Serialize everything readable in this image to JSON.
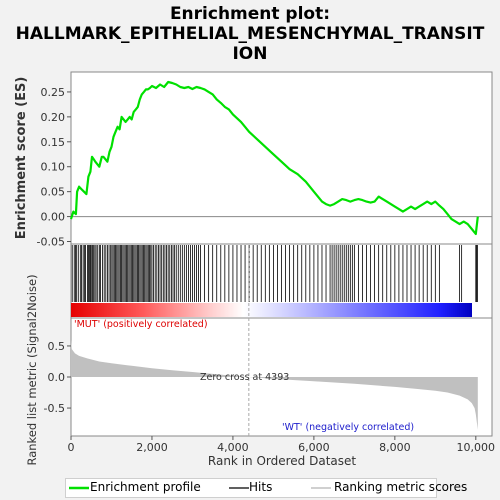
{
  "header": {
    "title_line1": "Enrichment plot:",
    "title_line2": "HALLMARK_EPITHELIAL_MESENCHYMAL_TRANSIT",
    "title_line3": "ION"
  },
  "chart_data": [
    {
      "type": "line",
      "name": "enrichment-score-panel",
      "ylabel": "Enrichment score (ES)",
      "ylim": [
        -0.055,
        0.29
      ],
      "yticks": [
        "-0.05",
        "0.00",
        "0.05",
        "0.10",
        "0.15",
        "0.20",
        "0.25"
      ],
      "xlim": [
        0,
        10400
      ],
      "line_color": "#00e000",
      "series": [
        {
          "name": "Enrichment profile",
          "x": [
            0,
            60,
            120,
            150,
            200,
            260,
            320,
            380,
            430,
            480,
            520,
            560,
            600,
            650,
            700,
            760,
            800,
            850,
            900,
            950,
            1000,
            1050,
            1100,
            1150,
            1200,
            1250,
            1300,
            1350,
            1400,
            1450,
            1500,
            1550,
            1600,
            1650,
            1700,
            1750,
            1800,
            1850,
            1900,
            1950,
            2000,
            2100,
            2200,
            2300,
            2400,
            2500,
            2600,
            2700,
            2800,
            2900,
            3000,
            3100,
            3200,
            3300,
            3400,
            3500,
            3600,
            3700,
            3800,
            3900,
            4000,
            4200,
            4400,
            4600,
            4800,
            5000,
            5200,
            5400,
            5600,
            5800,
            6000,
            6200,
            6300,
            6400,
            6500,
            6600,
            6700,
            6800,
            6900,
            7000,
            7100,
            7200,
            7300,
            7400,
            7500,
            7600,
            7700,
            7800,
            7900,
            8000,
            8100,
            8200,
            8300,
            8400,
            8500,
            8600,
            8700,
            8800,
            8900,
            9000,
            9100,
            9200,
            9300,
            9400,
            9500,
            9600,
            9700,
            9800,
            9900,
            10000,
            10050
          ],
          "y": [
            -0.005,
            0.01,
            0.005,
            0.05,
            0.06,
            0.055,
            0.05,
            0.045,
            0.08,
            0.09,
            0.12,
            0.115,
            0.11,
            0.105,
            0.1,
            0.12,
            0.12,
            0.115,
            0.11,
            0.13,
            0.14,
            0.16,
            0.17,
            0.18,
            0.175,
            0.2,
            0.195,
            0.19,
            0.195,
            0.2,
            0.195,
            0.21,
            0.215,
            0.22,
            0.235,
            0.245,
            0.25,
            0.255,
            0.255,
            0.258,
            0.262,
            0.258,
            0.265,
            0.26,
            0.27,
            0.268,
            0.265,
            0.26,
            0.258,
            0.26,
            0.256,
            0.26,
            0.258,
            0.255,
            0.25,
            0.245,
            0.235,
            0.228,
            0.22,
            0.215,
            0.205,
            0.19,
            0.17,
            0.155,
            0.14,
            0.125,
            0.11,
            0.095,
            0.085,
            0.07,
            0.05,
            0.03,
            0.025,
            0.022,
            0.025,
            0.03,
            0.035,
            0.033,
            0.03,
            0.033,
            0.035,
            0.033,
            0.03,
            0.028,
            0.03,
            0.04,
            0.035,
            0.03,
            0.025,
            0.02,
            0.015,
            0.01,
            0.015,
            0.02,
            0.015,
            0.02,
            0.025,
            0.03,
            0.025,
            0.03,
            0.022,
            0.015,
            0.005,
            -0.005,
            -0.01,
            -0.015,
            -0.01,
            -0.015,
            -0.025,
            -0.035,
            0.0
          ]
        }
      ]
    },
    {
      "type": "line",
      "name": "hits-panel",
      "series": [
        {
          "name": "Hits",
          "x": [
            30,
            80,
            110,
            140,
            180,
            230,
            260,
            300,
            330,
            360,
            410,
            430,
            460,
            480,
            500,
            530,
            560,
            590,
            620,
            660,
            700,
            730,
            780,
            820,
            860,
            900,
            940,
            980,
            1010,
            1040,
            1070,
            1100,
            1130,
            1160,
            1190,
            1220,
            1250,
            1280,
            1310,
            1340,
            1370,
            1400,
            1430,
            1460,
            1490,
            1520,
            1550,
            1580,
            1610,
            1640,
            1670,
            1700,
            1730,
            1760,
            1790,
            1820,
            1850,
            1880,
            1910,
            1940,
            1970,
            2000,
            2040,
            2080,
            2120,
            2160,
            2200,
            2240,
            2280,
            2320,
            2360,
            2400,
            2440,
            2480,
            2520,
            2560,
            2600,
            2650,
            2700,
            2750,
            2800,
            2850,
            2900,
            2950,
            3000,
            3050,
            3100,
            3150,
            3200,
            3300,
            3400,
            3500,
            3600,
            3700,
            3800,
            3900,
            4000,
            4100,
            4200,
            4300,
            4400,
            4500,
            4600,
            4700,
            4800,
            4900,
            5000,
            5100,
            5200,
            5300,
            5400,
            5500,
            5600,
            5700,
            5800,
            5900,
            6000,
            6100,
            6200,
            6300,
            6400,
            6450,
            6500,
            6550,
            6600,
            6650,
            6700,
            6750,
            6800,
            6850,
            6900,
            6950,
            7000,
            7100,
            7200,
            7300,
            7400,
            7500,
            7600,
            7700,
            7800,
            7900,
            8000,
            8100,
            8200,
            8300,
            8400,
            8500,
            8600,
            8700,
            8800,
            8900,
            9000,
            9100,
            9600,
            9650,
            10000,
            10020,
            10040
          ]
        }
      ]
    },
    {
      "type": "area",
      "name": "ranked-metric-panel",
      "ylabel": "Ranked list metric (Signal2Noise)",
      "xlabel": "Rank in Ordered Dataset",
      "ylim": [
        -0.95,
        0.95
      ],
      "yticks": [
        "-0.5",
        "0.0",
        "0.5"
      ],
      "xlim": [
        0,
        10400
      ],
      "xticks": [
        "0",
        "2,000",
        "4,000",
        "6,000",
        "8,000",
        "10,000"
      ],
      "fill_color": "#c0c0c0",
      "zero_cross": 4393,
      "zero_cross_label": "Zero cross at 4393",
      "pos_label": "'MUT' (positively correlated)",
      "neg_label": "'WT' (negatively correlated)",
      "series": [
        {
          "name": "Ranking metric scores",
          "x": [
            0,
            20,
            100,
            200,
            400,
            700,
            1000,
            1500,
            2000,
            2500,
            3000,
            3500,
            4000,
            4393,
            5000,
            6000,
            7000,
            8000,
            8500,
            9000,
            9300,
            9600,
            9800,
            9900,
            9970,
            10000,
            10030,
            10050
          ],
          "y": [
            0.6,
            0.45,
            0.38,
            0.34,
            0.3,
            0.25,
            0.22,
            0.18,
            0.14,
            0.11,
            0.08,
            0.05,
            0.02,
            0.0,
            -0.03,
            -0.07,
            -0.11,
            -0.16,
            -0.19,
            -0.22,
            -0.25,
            -0.3,
            -0.36,
            -0.42,
            -0.5,
            -0.6,
            -0.75,
            -0.85
          ]
        }
      ]
    }
  ],
  "legend": {
    "items": [
      {
        "label": "Enrichment profile"
      },
      {
        "label": "Hits"
      },
      {
        "label": "Ranking metric scores"
      }
    ]
  }
}
